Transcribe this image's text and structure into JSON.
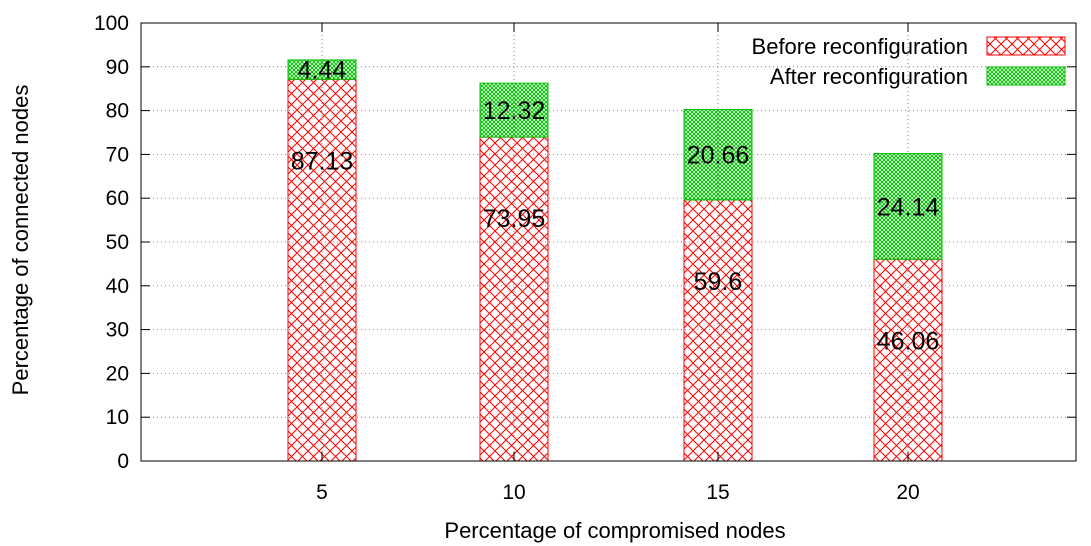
{
  "chart_data": {
    "type": "bar",
    "stacked": true,
    "categories": [
      "5",
      "10",
      "15",
      "20"
    ],
    "series": [
      {
        "name": "Before reconfiguration",
        "values": [
          87.13,
          73.95,
          59.6,
          46.06
        ],
        "labels": [
          "87.13",
          "73.95",
          "59.6",
          "46.06"
        ],
        "color": "#ff0000",
        "pattern": "crosshatch"
      },
      {
        "name": "After reconfiguration",
        "values": [
          4.44,
          12.32,
          20.66,
          24.14
        ],
        "labels": [
          "4.44",
          "12.32",
          "20.66",
          "24.14"
        ],
        "color": "#00c000",
        "pattern": "dotted-crosshatch"
      }
    ],
    "xlabel": "Percentage of compromised nodes",
    "ylabel": "Percentage of connected nodes",
    "ylim": [
      0,
      100
    ],
    "yticks": [
      "0",
      "10",
      "20",
      "30",
      "40",
      "50",
      "60",
      "70",
      "80",
      "90",
      "100"
    ],
    "grid": true,
    "legend_position": "top-right"
  }
}
